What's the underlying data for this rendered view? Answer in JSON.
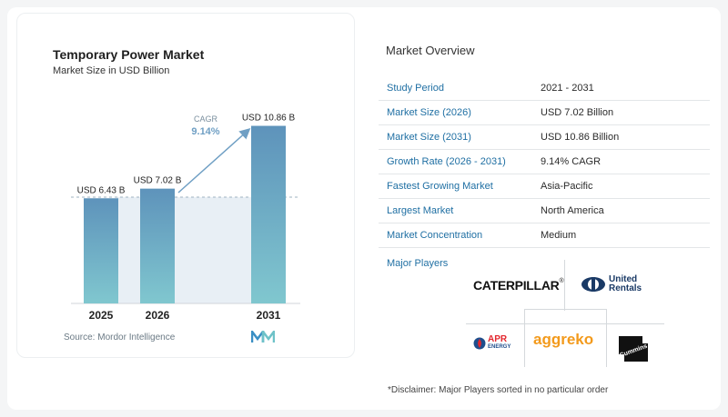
{
  "chart": {
    "title": "Temporary Power Market",
    "subtitle": "Market Size in USD Billion",
    "source": "Source:",
    "source_name": "Mordor Intelligence",
    "cagr_label": "CAGR",
    "cagr_value": "9.14%"
  },
  "chart_data": {
    "type": "bar",
    "title": "Temporary Power Market",
    "subtitle": "Market Size in USD Billion",
    "categories": [
      "2025",
      "2026",
      "2031"
    ],
    "values": [
      6.43,
      7.02,
      10.86
    ],
    "data_labels": [
      "USD 6.43 B",
      "USD 7.02 B",
      "USD 10.86 B"
    ],
    "ylim": [
      0,
      12
    ],
    "grid": false,
    "annotations": [
      "CAGR",
      "9.14%"
    ]
  },
  "overview": {
    "title": "Market Overview",
    "rows": [
      {
        "label": "Study Period",
        "value": "2021 - 2031"
      },
      {
        "label": "Market Size (2026)",
        "value": "USD 7.02 Billion"
      },
      {
        "label": "Market Size (2031)",
        "value": "USD 10.86 Billion"
      },
      {
        "label": "Growth Rate (2026 - 2031)",
        "value": "9.14% CAGR"
      },
      {
        "label": "Fastest Growing Market",
        "value": "Asia-Pacific"
      },
      {
        "label": "Largest Market",
        "value": "North America"
      },
      {
        "label": "Market Concentration",
        "value": "Medium"
      }
    ]
  },
  "players": {
    "label": "Major Players",
    "caterpillar": "CATERPILLAR",
    "united_1": "United",
    "united_2": "Rentals",
    "apr_1": "APR",
    "apr_2": "ENERGY",
    "aggreko": "aggreko",
    "cummins": "Cummins"
  },
  "disclaimer": "*Disclaimer: Major Players sorted in no particular order",
  "colors": {
    "bar_top": "#5e93bb",
    "bar_bottom": "#80c7cf",
    "arrow": "#6f9fc4",
    "label_blue": "#1f6fa3",
    "aggreko_orange": "#f39a1c"
  }
}
